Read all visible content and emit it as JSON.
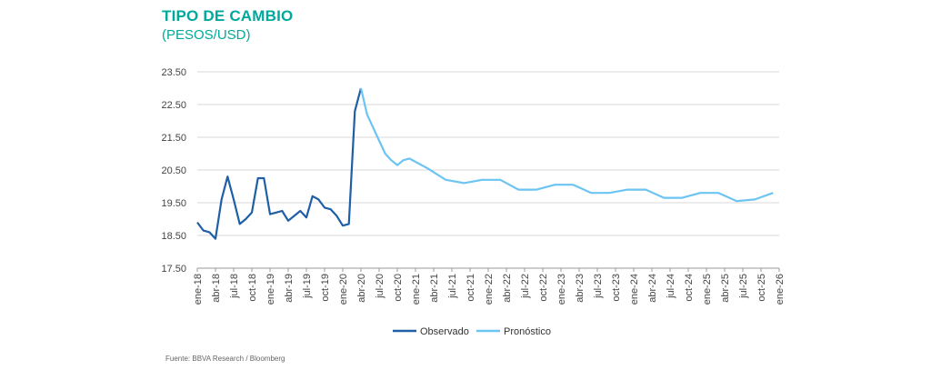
{
  "header": {
    "title": "TIPO DE CAMBIO",
    "subtitle": "(PESOS/USD)"
  },
  "footer": {
    "source": "Fuente: BBVA Research / Bloomberg"
  },
  "colors": {
    "observado": "#1f5fa6",
    "pronostico": "#6cc4f2",
    "gridline": "#d9d9d9",
    "title": "#00a99d"
  },
  "chart_data": {
    "type": "line",
    "title": "TIPO DE CAMBIO",
    "subtitle": "(PESOS/USD)",
    "xlabel": "",
    "ylabel": "",
    "ylim": [
      17.5,
      23.5
    ],
    "yticks": [
      17.5,
      18.5,
      19.5,
      20.5,
      21.5,
      22.5,
      23.5
    ],
    "ytick_labels": [
      "17.50",
      "18.50",
      "19.50",
      "20.50",
      "21.50",
      "22.50",
      "23.50"
    ],
    "x_start": "2018-01",
    "x_end": "2026-01",
    "xtick_labels": [
      "ene-18",
      "abr-18",
      "jul-18",
      "oct-18",
      "ene-19",
      "abr-19",
      "jul-19",
      "oct-19",
      "ene-20",
      "abr-20",
      "jul-20",
      "oct-20",
      "ene-21",
      "abr-21",
      "jul-21",
      "oct-21",
      "ene-22",
      "abr-22",
      "jul-22",
      "oct-22",
      "ene-23",
      "abr-23",
      "jul-23",
      "oct-23",
      "ene-24",
      "abr-24",
      "jul-24",
      "oct-24",
      "ene-25",
      "abr-25",
      "jul-25",
      "oct-25",
      "ene-26"
    ],
    "grid": true,
    "legend": "bottom",
    "series": [
      {
        "name": "Observado",
        "points": [
          [
            "2018-01",
            18.9
          ],
          [
            "2018-02",
            18.65
          ],
          [
            "2018-03",
            18.6
          ],
          [
            "2018-04",
            18.4
          ],
          [
            "2018-05",
            19.6
          ],
          [
            "2018-06",
            20.3
          ],
          [
            "2018-07",
            19.6
          ],
          [
            "2018-08",
            18.85
          ],
          [
            "2018-09",
            19.0
          ],
          [
            "2018-10",
            19.2
          ],
          [
            "2018-11",
            20.25
          ],
          [
            "2018-12",
            20.25
          ],
          [
            "2019-01",
            19.15
          ],
          [
            "2019-02",
            19.2
          ],
          [
            "2019-03",
            19.25
          ],
          [
            "2019-04",
            18.95
          ],
          [
            "2019-05",
            19.1
          ],
          [
            "2019-06",
            19.25
          ],
          [
            "2019-07",
            19.05
          ],
          [
            "2019-08",
            19.7
          ],
          [
            "2019-09",
            19.6
          ],
          [
            "2019-10",
            19.35
          ],
          [
            "2019-11",
            19.3
          ],
          [
            "2019-12",
            19.1
          ],
          [
            "2020-01",
            18.8
          ],
          [
            "2020-02",
            18.85
          ],
          [
            "2020-03",
            22.3
          ],
          [
            "2020-04",
            23.0
          ]
        ]
      },
      {
        "name": "Pronóstico",
        "points": [
          [
            "2020-04",
            23.0
          ],
          [
            "2020-05",
            22.2
          ],
          [
            "2020-06",
            21.8
          ],
          [
            "2020-07",
            21.4
          ],
          [
            "2020-08",
            21.0
          ],
          [
            "2020-09",
            20.8
          ],
          [
            "2020-10",
            20.65
          ],
          [
            "2020-11",
            20.8
          ],
          [
            "2020-12",
            20.85
          ],
          [
            "2021-03",
            20.55
          ],
          [
            "2021-06",
            20.2
          ],
          [
            "2021-09",
            20.1
          ],
          [
            "2021-12",
            20.2
          ],
          [
            "2022-03",
            20.2
          ],
          [
            "2022-06",
            19.9
          ],
          [
            "2022-09",
            19.9
          ],
          [
            "2022-12",
            20.05
          ],
          [
            "2023-03",
            20.05
          ],
          [
            "2023-06",
            19.8
          ],
          [
            "2023-09",
            19.8
          ],
          [
            "2023-12",
            19.9
          ],
          [
            "2024-03",
            19.9
          ],
          [
            "2024-06",
            19.65
          ],
          [
            "2024-09",
            19.65
          ],
          [
            "2024-12",
            19.8
          ],
          [
            "2025-03",
            19.8
          ],
          [
            "2025-06",
            19.55
          ],
          [
            "2025-09",
            19.6
          ],
          [
            "2025-12",
            19.8
          ]
        ]
      }
    ]
  }
}
